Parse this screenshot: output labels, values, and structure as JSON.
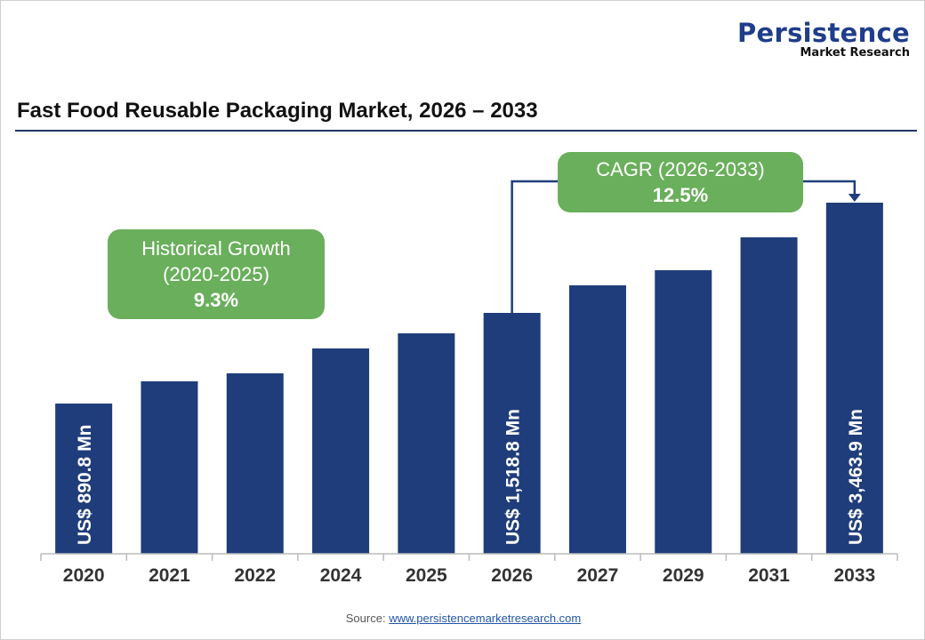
{
  "logo": {
    "line1": "Persistence",
    "line2": "Market Research"
  },
  "chart_data": {
    "type": "bar",
    "title": "Fast Food Reusable Packaging Market, 2026 – 2033",
    "categories": [
      "2020",
      "2021",
      "2022",
      "2024",
      "2025",
      "2026",
      "2027",
      "2029",
      "2031",
      "2033"
    ],
    "values": [
      890.8,
      1044.7,
      1100.1,
      1272.5,
      1377.2,
      1518.8,
      2005.1,
      2271.7,
      2852.1,
      3463.9
    ],
    "value_note_estimated_for": [
      "2021",
      "2022",
      "2024",
      "2025",
      "2027",
      "2029",
      "2031"
    ],
    "data_labels": {
      "2020": "US$ 890.8 Mn",
      "2026": "US$ 1,518.8 Mn",
      "2033": "US$ 3,463.9 Mn"
    },
    "bar_color": "#1f3d7a",
    "xlabel": "",
    "ylabel": "",
    "grid": false,
    "annotations": {
      "historical": {
        "line1": "Historical Growth",
        "line2": "(2020-2025)",
        "value": "9.3%"
      },
      "cagr": {
        "line1": "CAGR (2026-2033)",
        "value": "12.5%"
      }
    },
    "annotation_color": "#6aaf5c"
  },
  "source": {
    "label": "Source:",
    "link": "www.persistencemarketresearch.com"
  }
}
